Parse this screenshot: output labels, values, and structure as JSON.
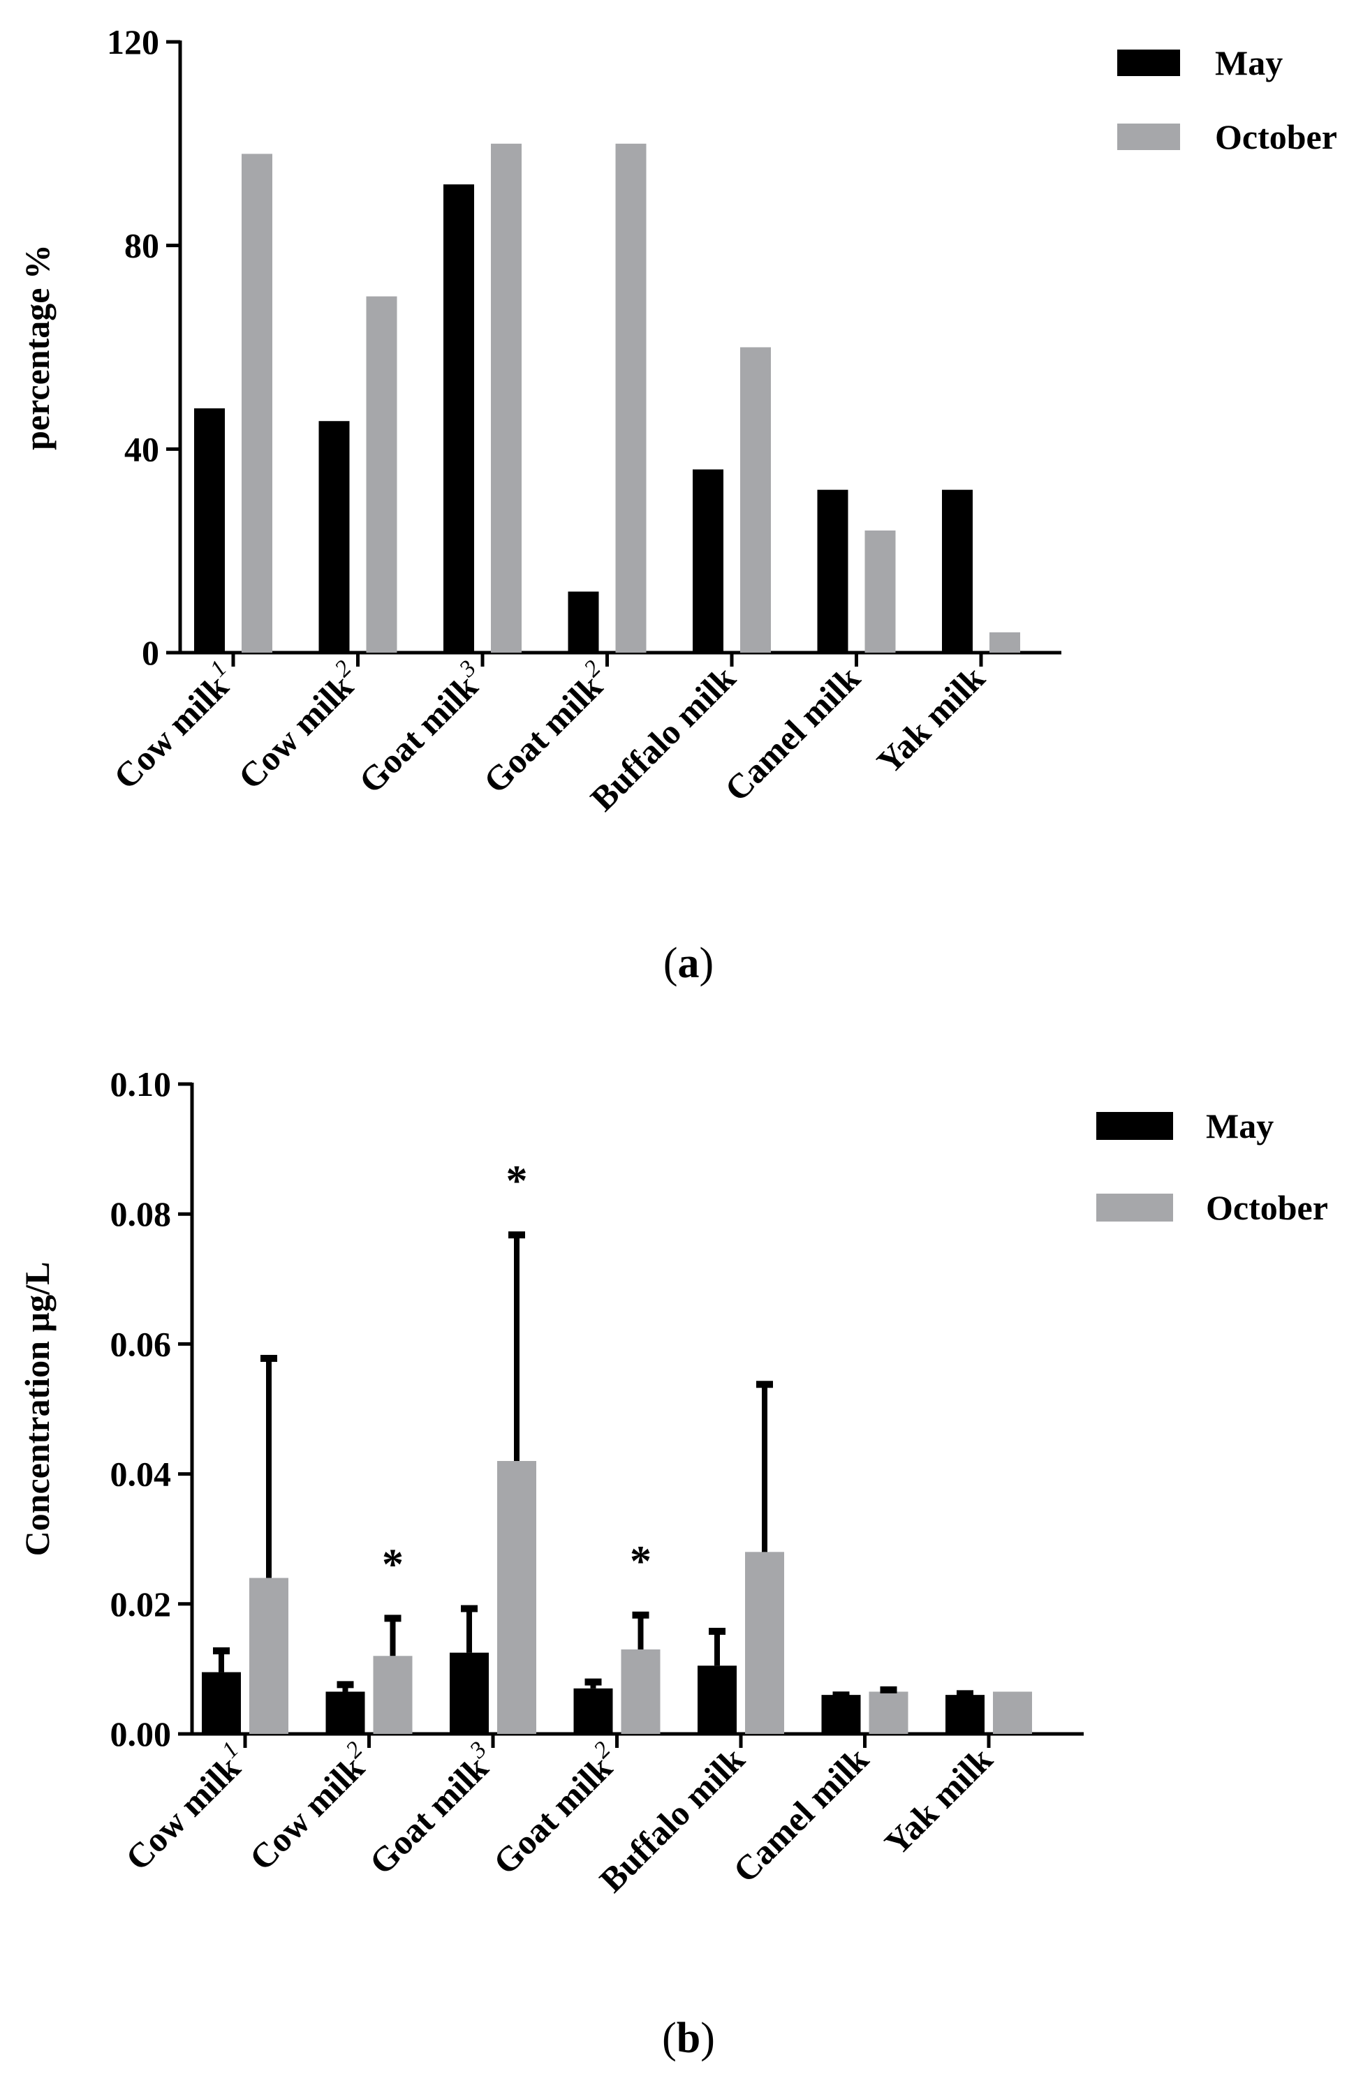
{
  "chart_data": [
    {
      "type": "bar",
      "panel": "a",
      "caption_letter": "a",
      "categories": [
        "Cow milk",
        "Cow milk",
        "Goat milk",
        "Goat milk",
        "Buffalo milk",
        "Camel milk",
        "Yak milk"
      ],
      "category_superscripts": [
        "1",
        "2",
        "3",
        "2",
        "",
        "",
        ""
      ],
      "series": [
        {
          "name": "May",
          "color": "#000000",
          "values": [
            48,
            45.5,
            92,
            12,
            36,
            32,
            32
          ]
        },
        {
          "name": "October",
          "color": "#a6a7aa",
          "values": [
            98,
            70,
            100,
            100,
            60,
            24,
            4
          ]
        }
      ],
      "title": "",
      "xlabel": "",
      "ylabel": "percentage %",
      "ylim": [
        0,
        120
      ],
      "yticks": [
        "0",
        "40",
        "80",
        "120"
      ],
      "legend_position": "top-right",
      "grid": false
    },
    {
      "type": "bar",
      "panel": "b",
      "caption_letter": "b",
      "categories": [
        "Cow milk",
        "Cow milk",
        "Goat milk",
        "Goat milk",
        "Buffalo milk",
        "Camel milk",
        "Yak milk"
      ],
      "category_superscripts": [
        "1",
        "2",
        "3",
        "2",
        "",
        "",
        ""
      ],
      "series": [
        {
          "name": "May",
          "color": "#000000",
          "values": [
            0.0095,
            0.0065,
            0.0125,
            0.007,
            0.0105,
            0.006,
            0.006
          ],
          "error_upper": [
            0.013,
            0.0078,
            0.0195,
            0.0082,
            0.016,
            0.0062,
            0.0064
          ]
        },
        {
          "name": "October",
          "color": "#a6a7aa",
          "values": [
            0.024,
            0.012,
            0.042,
            0.013,
            0.028,
            0.0065,
            0.0065
          ],
          "error_upper": [
            0.058,
            0.018,
            0.077,
            0.0185,
            0.054,
            0.007,
            0.0065
          ]
        }
      ],
      "significance_markers": [
        "",
        "*",
        "*",
        "*",
        "",
        "",
        ""
      ],
      "title": "",
      "xlabel": "",
      "ylabel": "Concentration µg/L",
      "ylim": [
        0,
        0.1
      ],
      "yticks": [
        "0.00",
        "0.02",
        "0.04",
        "0.06",
        "0.08",
        "0.10"
      ],
      "legend_position": "top-right",
      "grid": false
    }
  ]
}
